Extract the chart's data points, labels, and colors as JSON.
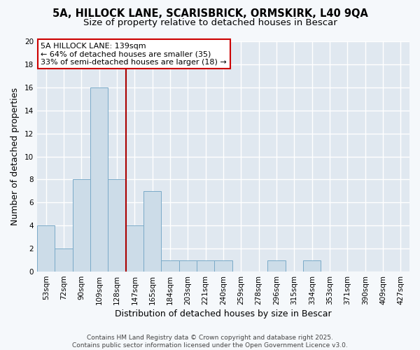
{
  "title_line1": "5A, HILLOCK LANE, SCARISBRICK, ORMSKIRK, L40 9QA",
  "title_line2": "Size of property relative to detached houses in Bescar",
  "xlabel": "Distribution of detached houses by size in Bescar",
  "ylabel": "Number of detached properties",
  "bar_color": "#ccdce8",
  "bar_edge_color": "#7aaac8",
  "bin_labels": [
    "53sqm",
    "72sqm",
    "90sqm",
    "109sqm",
    "128sqm",
    "147sqm",
    "165sqm",
    "184sqm",
    "203sqm",
    "221sqm",
    "240sqm",
    "259sqm",
    "278sqm",
    "296sqm",
    "315sqm",
    "334sqm",
    "353sqm",
    "371sqm",
    "390sqm",
    "409sqm",
    "427sqm"
  ],
  "bar_values": [
    4,
    2,
    8,
    16,
    8,
    4,
    7,
    1,
    1,
    1,
    1,
    0,
    0,
    1,
    0,
    1,
    0,
    0,
    0,
    0,
    0
  ],
  "vline_index": 4.5,
  "vline_color": "#aa0000",
  "annotation_text": "5A HILLOCK LANE: 139sqm\n← 64% of detached houses are smaller (35)\n33% of semi-detached houses are larger (18) →",
  "annotation_box_color": "#ffffff",
  "annotation_box_edge": "#cc0000",
  "ylim": [
    0,
    20
  ],
  "yticks": [
    0,
    2,
    4,
    6,
    8,
    10,
    12,
    14,
    16,
    18,
    20
  ],
  "fig_bg_color": "#f5f8fb",
  "ax_bg_color": "#e0e8f0",
  "grid_color": "#ffffff",
  "footer_text": "Contains HM Land Registry data © Crown copyright and database right 2025.\nContains public sector information licensed under the Open Government Licence v3.0.",
  "title_fontsize": 10.5,
  "subtitle_fontsize": 9.5,
  "axis_label_fontsize": 9,
  "tick_fontsize": 7.5,
  "annotation_fontsize": 8,
  "footer_fontsize": 6.5
}
